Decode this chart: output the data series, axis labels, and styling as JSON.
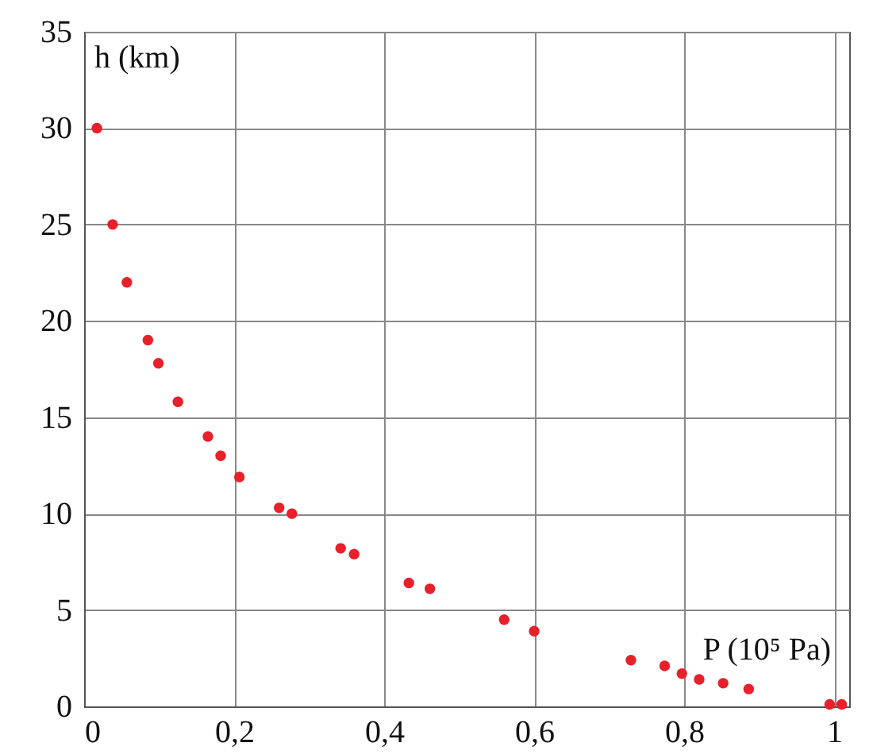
{
  "chart_data": {
    "type": "scatter",
    "xlabel": "P (10⁵ Pa)",
    "ylabel": "h (km)",
    "x": [
      0.017,
      0.038,
      0.057,
      0.085,
      0.099,
      0.125,
      0.165,
      0.182,
      0.207,
      0.26,
      0.277,
      0.342,
      0.36,
      0.433,
      0.461,
      0.56,
      0.6,
      0.729,
      0.774,
      0.797,
      0.82,
      0.852,
      0.886,
      0.994,
      1.01
    ],
    "series": [
      {
        "color": "#e8202a",
        "values": [
          30,
          25,
          22,
          19,
          17.8,
          15.8,
          14,
          13,
          11.9,
          10.3,
          10,
          8.2,
          7.9,
          6.4,
          6.1,
          4.5,
          3.9,
          2.4,
          2.1,
          1.7,
          1.4,
          1.2,
          0.9,
          0.1,
          0.1
        ]
      }
    ],
    "xlim": [
      0,
      1.02
    ],
    "ylim": [
      0,
      35
    ],
    "xticks": [
      0,
      {
        "value": 0.2,
        "label": "0,2"
      },
      {
        "value": 0.4,
        "label": "0,4"
      },
      {
        "value": 0.6,
        "label": "0,6"
      },
      {
        "value": 0.8,
        "label": "0,8"
      },
      1
    ],
    "yticks": [
      0,
      5,
      10,
      15,
      20,
      25,
      30,
      35
    ],
    "grid": true,
    "marker": "circle"
  }
}
